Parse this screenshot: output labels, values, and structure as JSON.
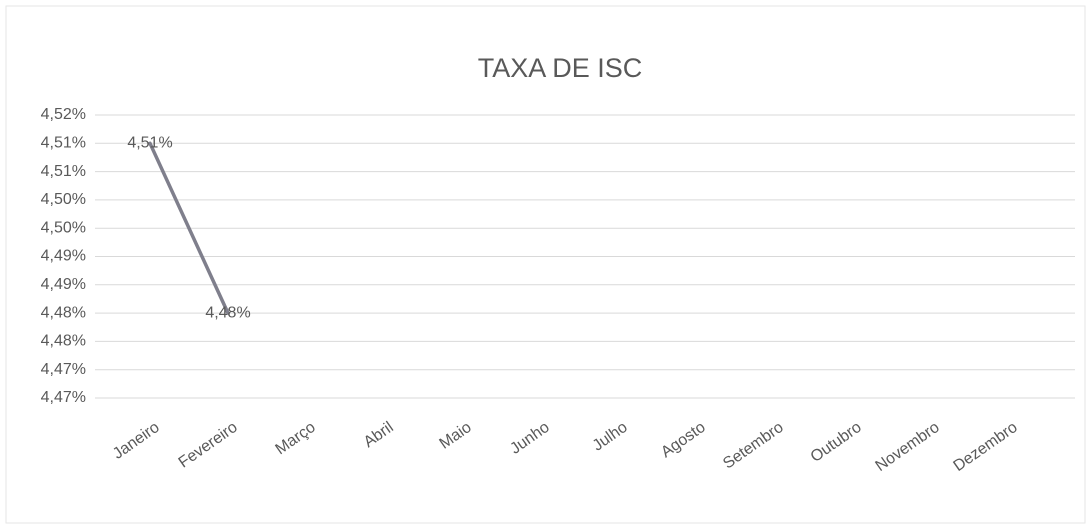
{
  "chart_data": {
    "type": "line",
    "title": "TAXA DE ISC",
    "categories": [
      "Janeiro",
      "Fevereiro",
      "Março",
      "Abril",
      "Maio",
      "Junho",
      "Julho",
      "Agosto",
      "Setembro",
      "Outubro",
      "Novembro",
      "Dezembro"
    ],
    "series": [
      {
        "name": "Taxa de ISC",
        "color": "#7f7f8c",
        "values": [
          4.51,
          4.48,
          null,
          null,
          null,
          null,
          null,
          null,
          null,
          null,
          null,
          null
        ],
        "value_labels": [
          "4,51%",
          "4,48%",
          null,
          null,
          null,
          null,
          null,
          null,
          null,
          null,
          null,
          null
        ]
      }
    ],
    "ylim": [
      4.465,
      4.515
    ],
    "yticks": [
      {
        "value": 4.465,
        "label": "4,47%"
      },
      {
        "value": 4.47,
        "label": "4,47%"
      },
      {
        "value": 4.475,
        "label": "4,48%"
      },
      {
        "value": 4.48,
        "label": "4,48%"
      },
      {
        "value": 4.485,
        "label": "4,49%"
      },
      {
        "value": 4.49,
        "label": "4,49%"
      },
      {
        "value": 4.495,
        "label": "4,50%"
      },
      {
        "value": 4.5,
        "label": "4,50%"
      },
      {
        "value": 4.505,
        "label": "4,51%"
      },
      {
        "value": 4.51,
        "label": "4,51%"
      },
      {
        "value": 4.515,
        "label": "4,52%"
      }
    ],
    "grid": true
  }
}
